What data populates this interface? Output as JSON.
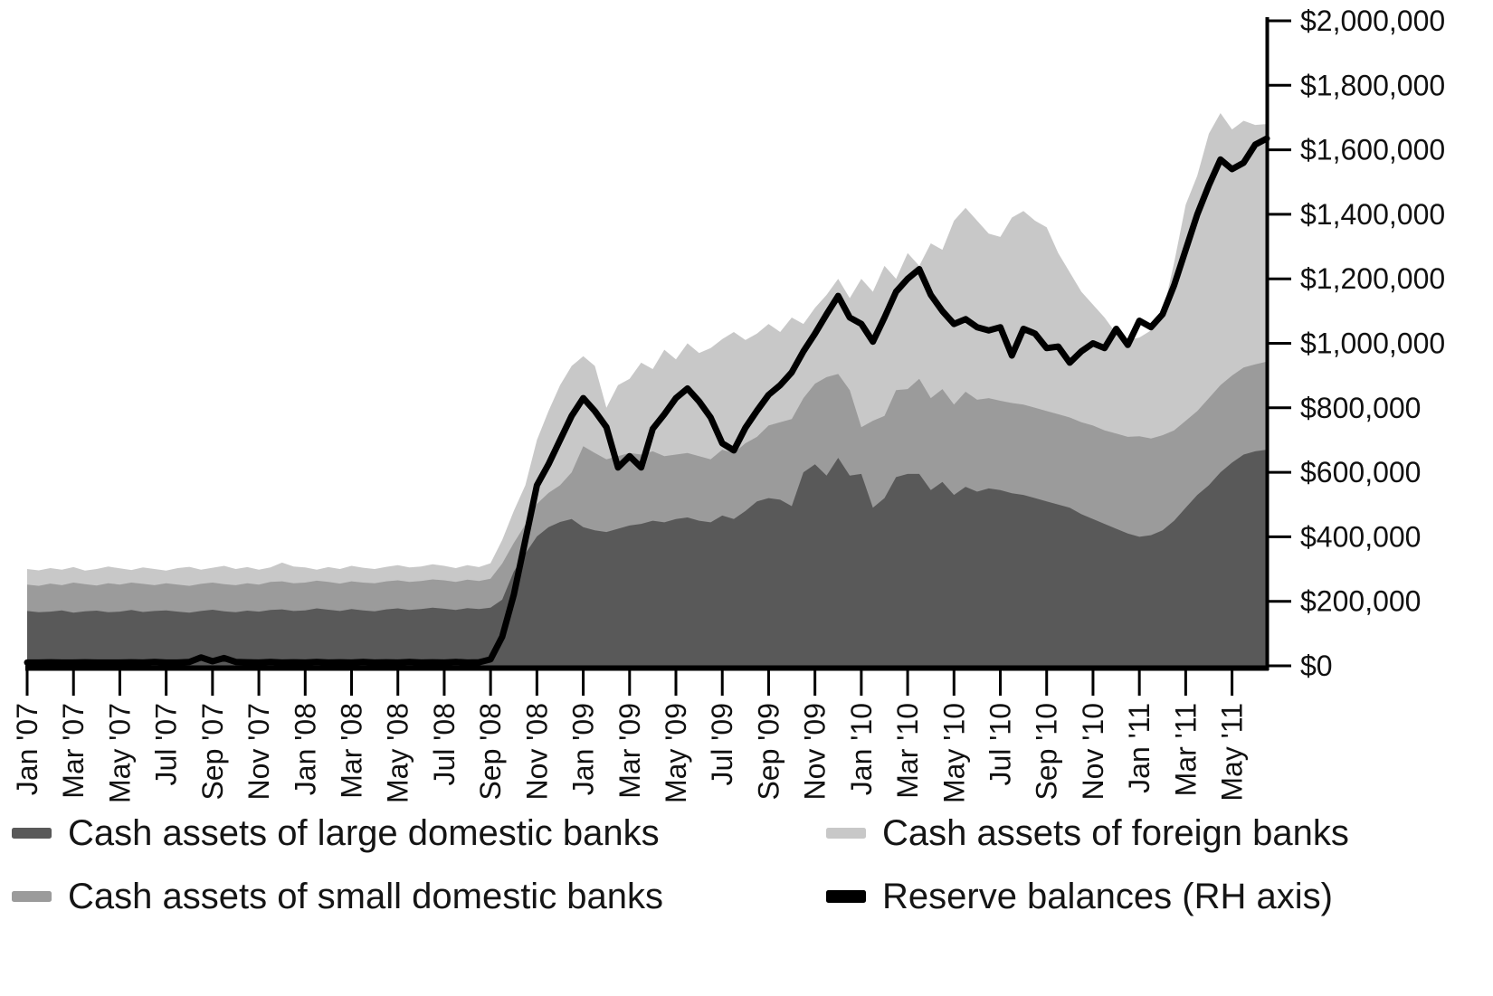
{
  "chart_data": {
    "type": "area",
    "subtype": "stacked-areas-with-line-overlay",
    "title": "",
    "xlabel": "",
    "ylabel": "",
    "grid": false,
    "x_unit": "months since Jan 2007",
    "x_step_months": 0.5,
    "x_total_months": 53.5,
    "x_tick_every_months": 2,
    "x_tick_labels": [
      "Jan '07",
      "Mar '07",
      "May '07",
      "Jul '07",
      "Sep '07",
      "Nov '07",
      "Jan '08",
      "Mar '08",
      "May '08",
      "Jul '08",
      "Sep '08",
      "Nov '08",
      "Jan '09",
      "Mar '09",
      "May '09",
      "Jul '09",
      "Sep '09",
      "Nov '09",
      "Jan '10",
      "Mar '10",
      "May '10",
      "Jul '10",
      "Sep '10",
      "Nov '10",
      "Jan '11",
      "Mar '11",
      "May '11"
    ],
    "y_right_axis": {
      "range": [
        0,
        2000000
      ],
      "tick_step": 200000,
      "tick_labels": [
        "$0",
        "$200,000",
        "$400,000",
        "$600,000",
        "$800,000",
        "$1,000,000",
        "$1,200,000",
        "$1,400,000",
        "$1,600,000",
        "$1,800,000",
        "$2,000,000"
      ]
    },
    "legend_position": "bottom",
    "series": [
      {
        "name": "Cash assets of large domestic banks",
        "type": "area",
        "stacked": true,
        "color": "#595959",
        "values": [
          170000,
          166000,
          168000,
          172000,
          165000,
          169000,
          171000,
          166000,
          168000,
          173000,
          167000,
          170000,
          172000,
          168000,
          165000,
          170000,
          174000,
          169000,
          166000,
          171000,
          168000,
          173000,
          175000,
          170000,
          172000,
          178000,
          174000,
          170000,
          176000,
          172000,
          169000,
          175000,
          178000,
          173000,
          176000,
          180000,
          177000,
          173000,
          179000,
          176000,
          180000,
          205000,
          292000,
          348000,
          401000,
          430000,
          446000,
          455000,
          430000,
          420000,
          415000,
          425000,
          435000,
          440000,
          450000,
          445000,
          455000,
          460000,
          450000,
          445000,
          466000,
          455000,
          480000,
          510000,
          520000,
          515000,
          495000,
          600000,
          625000,
          590000,
          645000,
          590000,
          595000,
          490000,
          520000,
          585000,
          595000,
          595000,
          545000,
          570000,
          530000,
          555000,
          540000,
          550000,
          545000,
          535000,
          530000,
          520000,
          510000,
          500000,
          490000,
          470000,
          455000,
          440000,
          425000,
          410000,
          400000,
          405000,
          420000,
          450000,
          490000,
          530000,
          560000,
          600000,
          630000,
          655000,
          665000,
          670000
        ]
      },
      {
        "name": "Cash assets of small domestic banks",
        "type": "area",
        "stacked": true,
        "color": "#9b9b9b",
        "values": [
          82000,
          82000,
          87000,
          78000,
          93000,
          84000,
          78000,
          90000,
          84000,
          85000,
          87000,
          80000,
          84000,
          84000,
          83000,
          84000,
          84000,
          84000,
          84000,
          85000,
          84000,
          87000,
          87000,
          86000,
          86000,
          86000,
          86000,
          85000,
          86000,
          86000,
          87000,
          87000,
          87000,
          87000,
          87000,
          88000,
          88000,
          87000,
          88000,
          87000,
          90000,
          112000,
          89000,
          90000,
          101000,
          106000,
          114000,
          145000,
          251000,
          240000,
          225000,
          225000,
          225000,
          215000,
          215000,
          205000,
          200000,
          200000,
          200000,
          195000,
          204000,
          205000,
          210000,
          200000,
          225000,
          240000,
          270000,
          230000,
          250000,
          305000,
          260000,
          265000,
          145000,
          270000,
          255000,
          270000,
          263000,
          295000,
          285000,
          288000,
          280000,
          295000,
          285000,
          280000,
          277000,
          280000,
          280000,
          280000,
          280000,
          280000,
          280000,
          285000,
          290000,
          290000,
          295000,
          300000,
          312000,
          300000,
          295000,
          280000,
          270000,
          260000,
          270000,
          270000,
          270000,
          270000,
          270000,
          273000
        ]
      },
      {
        "name": "Cash assets of foreign banks",
        "type": "area",
        "stacked": true,
        "color": "#c8c8c8",
        "values": [
          48000,
          48000,
          48000,
          48000,
          48000,
          42000,
          51000,
          52000,
          50000,
          39000,
          51000,
          50000,
          39000,
          51000,
          59000,
          44000,
          46000,
          57000,
          50000,
          50000,
          46000,
          45000,
          58000,
          52000,
          47000,
          34000,
          46000,
          45000,
          48000,
          46000,
          44000,
          45000,
          47000,
          45000,
          45000,
          47000,
          45000,
          43000,
          45000,
          43000,
          48000,
          73000,
          99000,
          122000,
          198000,
          254000,
          310000,
          330000,
          279000,
          270000,
          160000,
          220000,
          230000,
          285000,
          255000,
          330000,
          295000,
          340000,
          320000,
          345000,
          343000,
          375000,
          320000,
          320000,
          315000,
          280000,
          315000,
          230000,
          235000,
          255000,
          295000,
          285000,
          460000,
          400000,
          465000,
          345000,
          422000,
          350000,
          480000,
          432000,
          570000,
          570000,
          555000,
          510000,
          508000,
          575000,
          600000,
          580000,
          570000,
          500000,
          450000,
          405000,
          375000,
          350000,
          310000,
          300000,
          306000,
          335000,
          375000,
          520000,
          670000,
          730000,
          820000,
          844000,
          763000,
          765000,
          742000,
          737000
        ]
      },
      {
        "name": "Reserve balances (RH axis)",
        "type": "line",
        "stacked": false,
        "axis": "right",
        "color": "#000000",
        "values": [
          10000,
          10000,
          11000,
          10000,
          10000,
          11000,
          10000,
          10000,
          10000,
          11000,
          10000,
          12000,
          10000,
          10000,
          12000,
          26000,
          14000,
          24000,
          12000,
          11000,
          10000,
          12000,
          10000,
          11000,
          10000,
          12000,
          10000,
          11000,
          10000,
          12000,
          10000,
          11000,
          10000,
          12000,
          10000,
          11000,
          10000,
          12000,
          10000,
          11000,
          20000,
          90000,
          220000,
          390000,
          560000,
          625000,
          700000,
          775000,
          830000,
          790000,
          740000,
          615000,
          650000,
          615000,
          735000,
          780000,
          830000,
          860000,
          820000,
          770000,
          690000,
          668000,
          738000,
          791000,
          840000,
          870000,
          910000,
          975000,
          1030000,
          1090000,
          1147000,
          1080000,
          1060000,
          1005000,
          1080000,
          1160000,
          1200000,
          1230000,
          1150000,
          1100000,
          1060000,
          1075000,
          1050000,
          1040000,
          1050000,
          962000,
          1045000,
          1030000,
          985000,
          990000,
          940000,
          975000,
          1000000,
          985000,
          1045000,
          995000,
          1070000,
          1050000,
          1090000,
          1180000,
          1290000,
          1400000,
          1490000,
          1570000,
          1540000,
          1560000,
          1616000,
          1635000
        ]
      }
    ]
  },
  "legend": {
    "items": [
      {
        "label": "Cash assets of large domestic banks",
        "color": "#595959",
        "shape": "dash"
      },
      {
        "label": "Cash assets of small domestic banks",
        "color": "#9b9b9b",
        "shape": "dash"
      },
      {
        "label": "Cash assets of foreign banks",
        "color": "#c8c8c8",
        "shape": "dash"
      },
      {
        "label": "Reserve balances (RH axis)",
        "color": "#000000",
        "shape": "thick-dash"
      }
    ]
  },
  "colors": {
    "background": "#ffffff",
    "axis": "#000000",
    "text": "#151515"
  }
}
